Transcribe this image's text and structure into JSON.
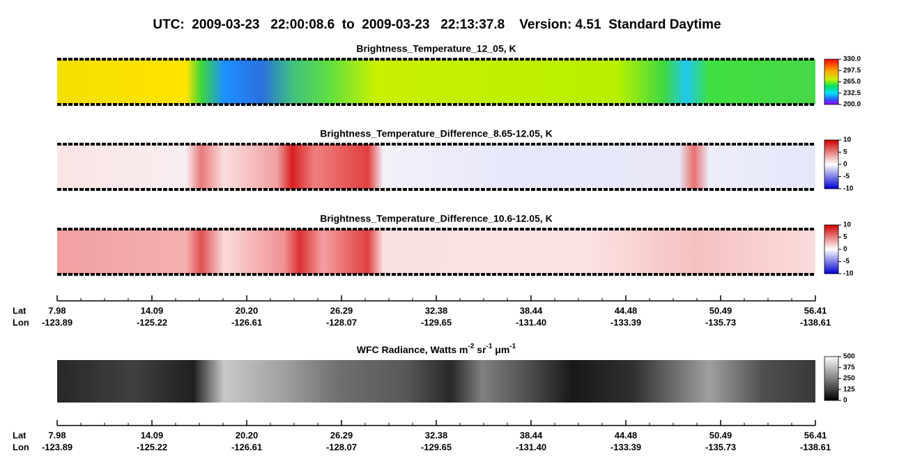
{
  "title": "UTC:  2009-03-23   22:00:08.6  to  2009-03-23   22:13:37.8    Version: 4.51  Standard Daytime",
  "panels": [
    {
      "title": "Brightness_Temperature_12_05, K",
      "colorbar_labels": [
        "330.0",
        "297.5",
        "265.0",
        "232.5",
        "200.0"
      ]
    },
    {
      "title": "Brightness_Temperature_Difference_8.65-12.05, K",
      "colorbar_labels": [
        "10",
        "5",
        "0",
        "-5",
        "-10"
      ]
    },
    {
      "title": "Brightness_Temperature_Difference_10.6-12.05, K",
      "colorbar_labels": [
        "10",
        "5",
        "0",
        "-5",
        "-10"
      ]
    },
    {
      "title_parts": [
        "WFC Radiance, Watts m",
        "-2",
        " sr",
        "-1",
        " μm",
        "-1"
      ],
      "colorbar_labels": [
        "500",
        "375",
        "250",
        "125",
        "0"
      ]
    }
  ],
  "axis": {
    "lat_label": "Lat",
    "lon_label": "Lon",
    "lat": [
      "7.98",
      "14.09",
      "20.20",
      "26.29",
      "32.38",
      "38.44",
      "44.48",
      "50.49",
      "56.41"
    ],
    "lon": [
      "-123.89",
      "-125.22",
      "-126.61",
      "-128.07",
      "-129.65",
      "-131.40",
      "-133.39",
      "-135.73",
      "-138.61"
    ]
  }
}
